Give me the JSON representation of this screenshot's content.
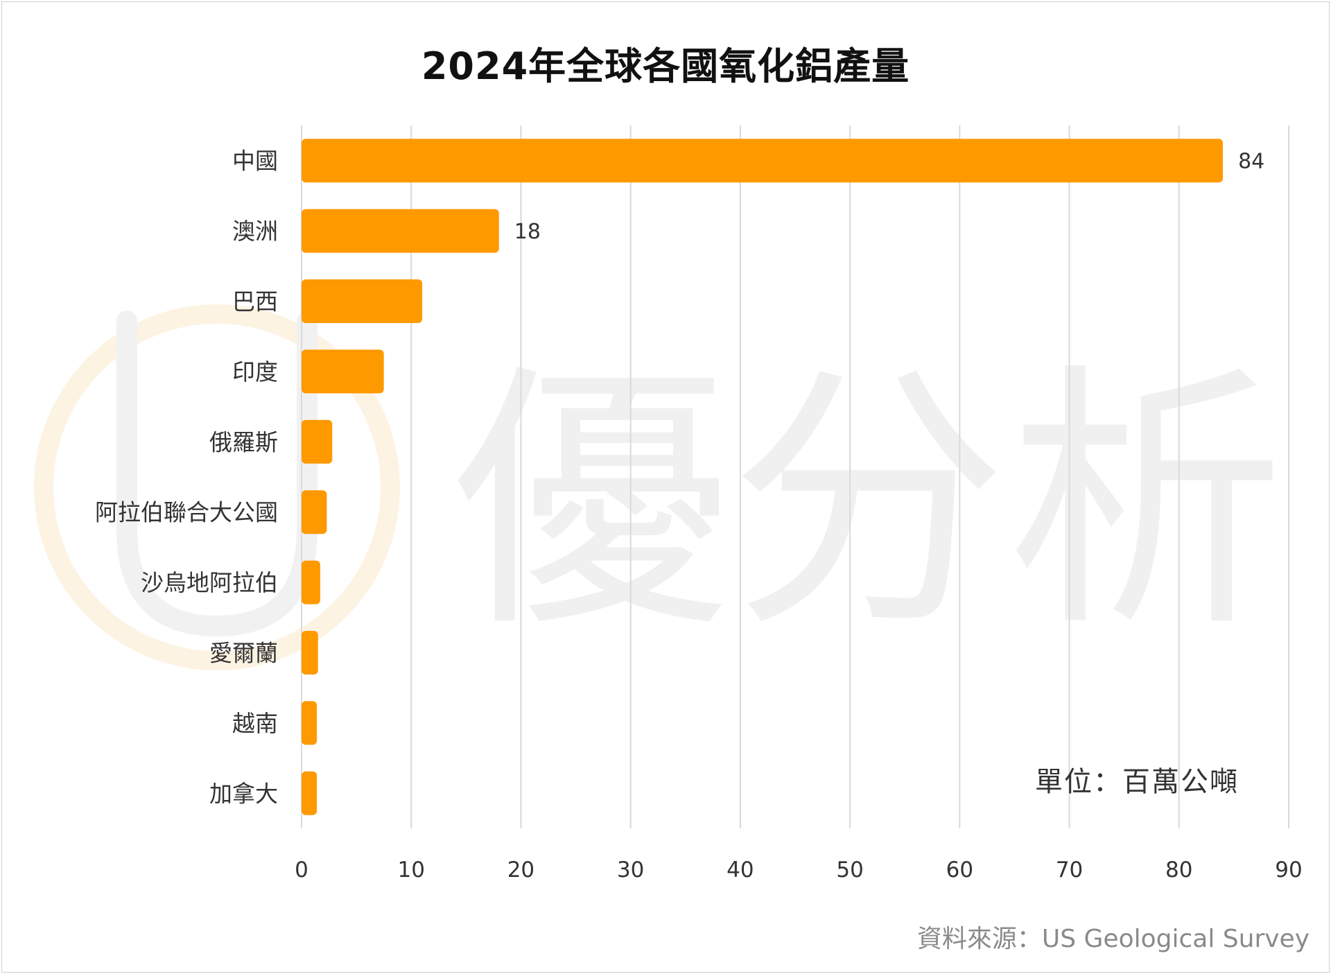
{
  "chart_data": {
    "type": "bar",
    "orientation": "horizontal",
    "title": "2024年全球各國氧化鋁產量",
    "categories": [
      "中國",
      "澳洲",
      "巴西",
      "印度",
      "俄羅斯",
      "阿拉伯聯合大公國",
      "沙烏地阿拉伯",
      "愛爾蘭",
      "越南",
      "加拿大"
    ],
    "values": [
      84,
      18,
      11,
      7.5,
      2.8,
      2.3,
      1.7,
      1.5,
      1.4,
      1.4
    ],
    "data_labels": [
      "84",
      "18",
      "",
      "",
      "",
      "",
      "",
      "",
      "",
      ""
    ],
    "xlim": [
      0,
      90
    ],
    "xticks": [
      "0",
      "10",
      "20",
      "30",
      "40",
      "50",
      "60",
      "70",
      "80",
      "90"
    ],
    "grid": "vertical",
    "bar_color": "#FF9900"
  },
  "unit_note": "單位：百萬公噸",
  "source_note": "資料來源：US Geological Survey",
  "watermark_text": "優分析",
  "colors": {
    "bar": "#FF9900",
    "grid": "#d9d9d9",
    "watermark": "#f0f0f0",
    "watermark_ring": "#fdf3e3"
  }
}
